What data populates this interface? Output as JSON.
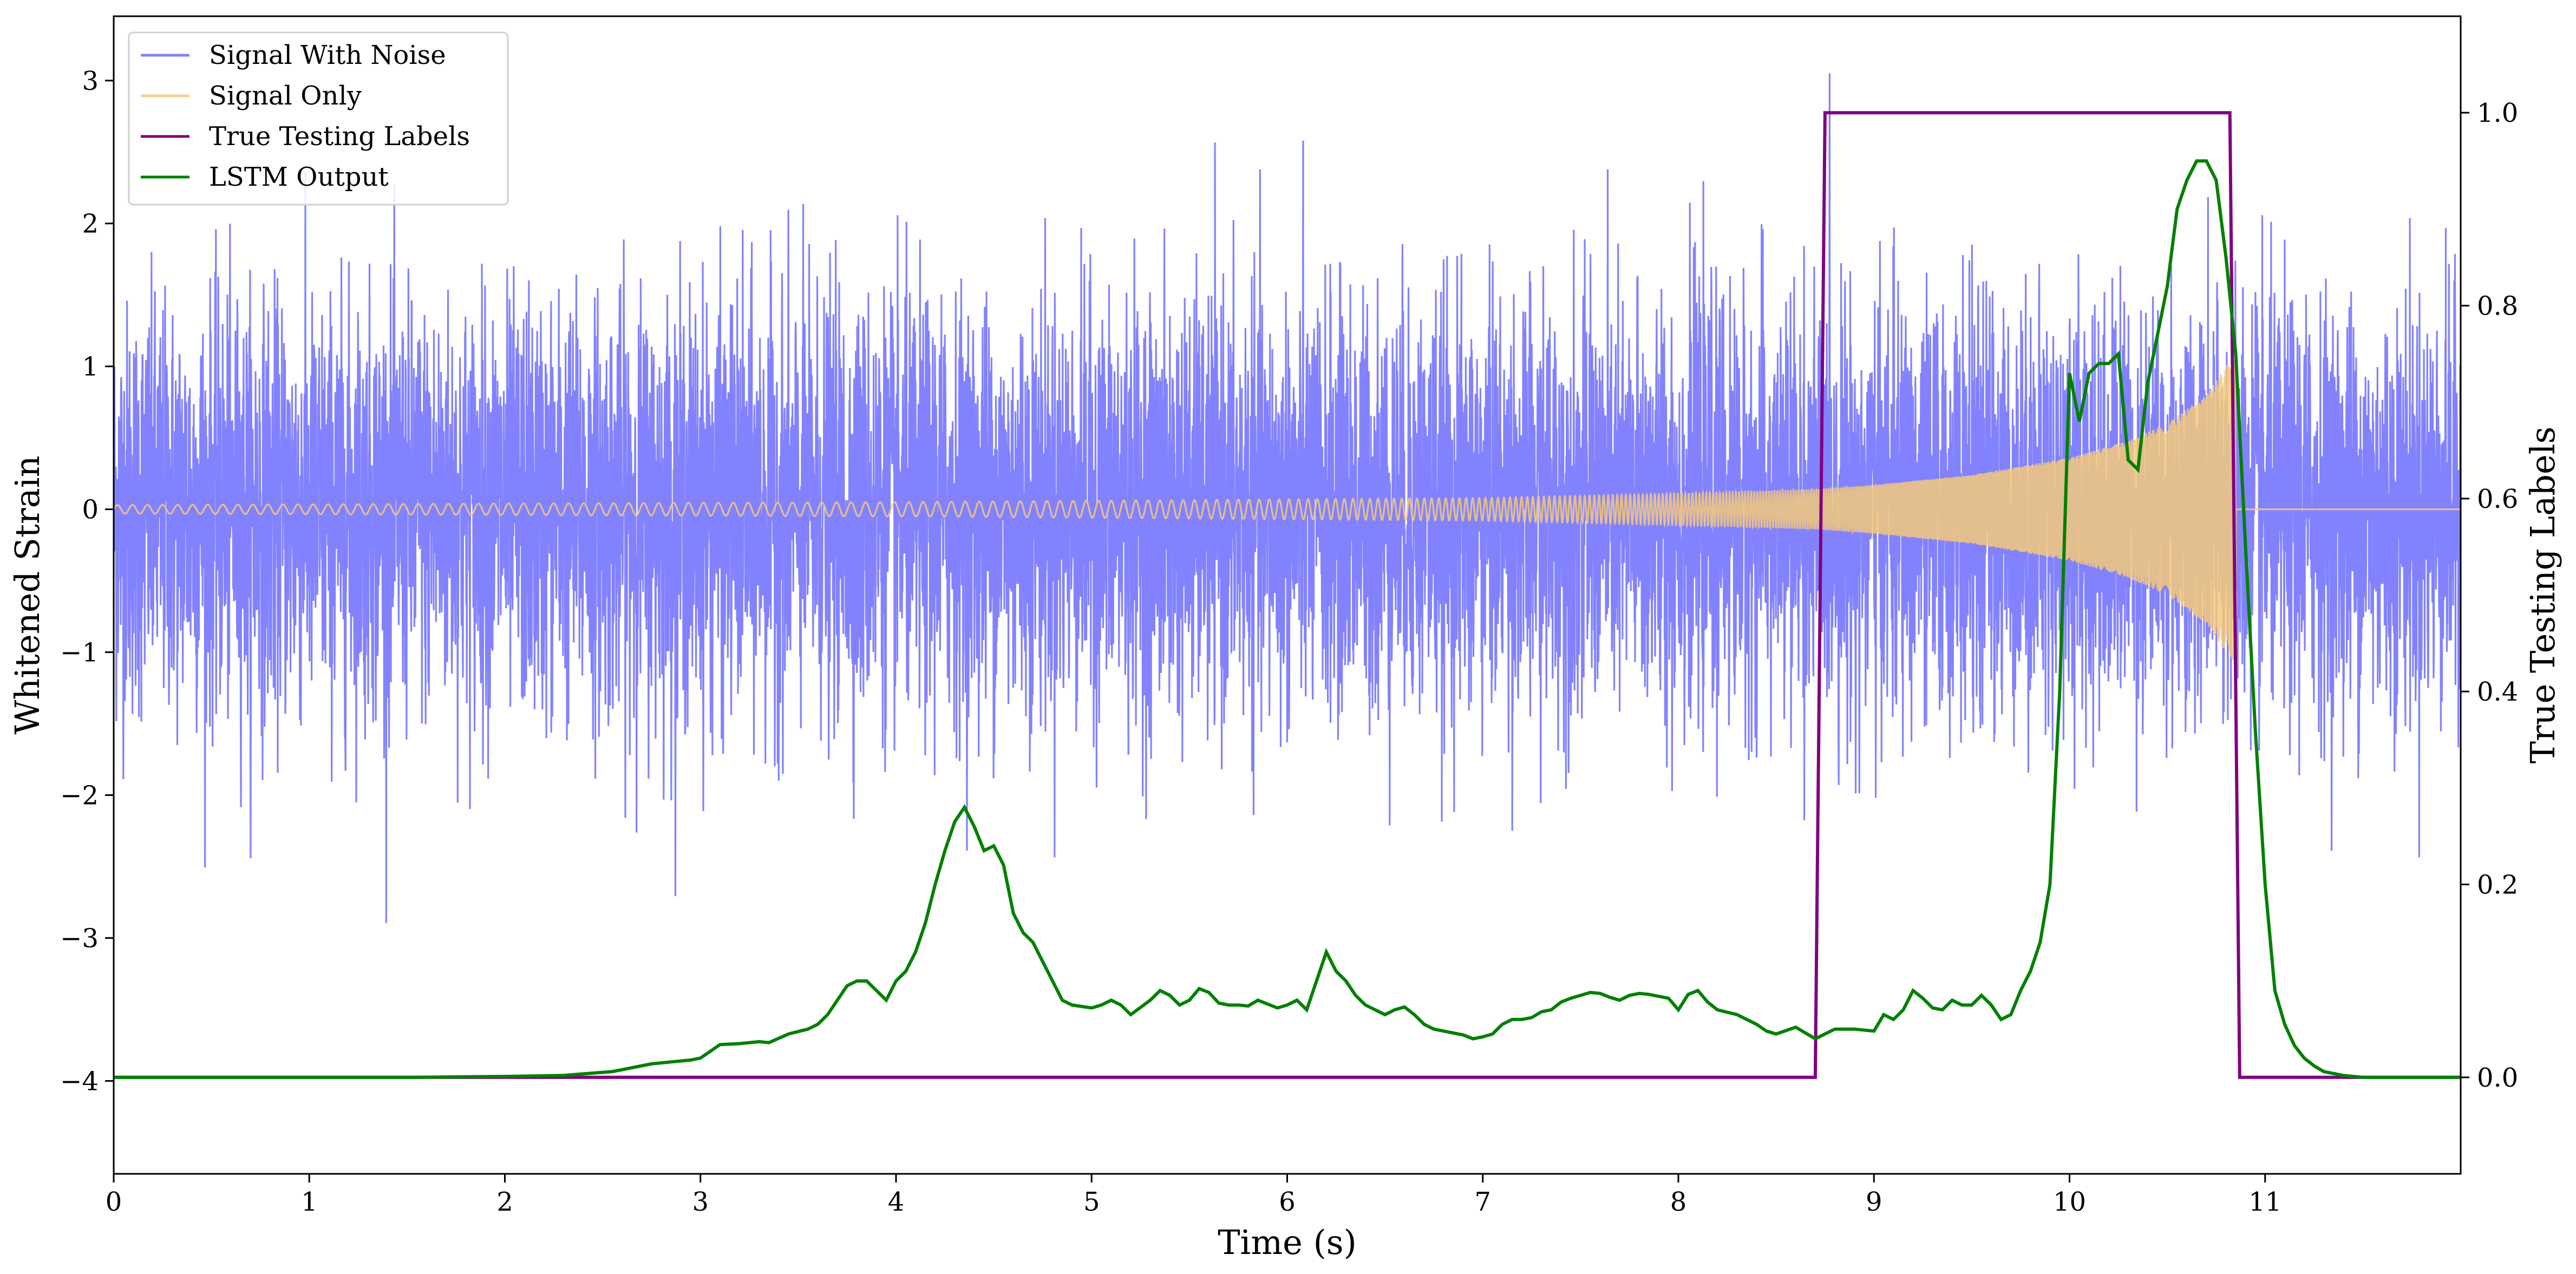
{
  "chart_data": {
    "type": "line",
    "title": "",
    "xlabel": "Time (s)",
    "ylabel_left": "Whitened Strain",
    "ylabel_right": "True Testing Labels",
    "xlim": [
      0,
      12
    ],
    "ylim_left": [
      -4.65,
      3.45
    ],
    "ylim_right": [
      -0.1,
      1.1
    ],
    "x_ticks": [
      0,
      1,
      2,
      3,
      4,
      5,
      6,
      7,
      8,
      9,
      10,
      11
    ],
    "y_ticks_left": [
      3,
      2,
      1,
      0,
      -1,
      -2,
      -3,
      -4
    ],
    "y_ticks_right": [
      1.0,
      0.8,
      0.6,
      0.4,
      0.2,
      0.0
    ],
    "y_ticks_left_labels": [
      "3",
      "2",
      "1",
      "0",
      "−1",
      "−2",
      "−3",
      "−4"
    ],
    "y_ticks_right_labels": [
      "1.0",
      "0.8",
      "0.6",
      "0.4",
      "0.2",
      "0.0"
    ],
    "grid": false,
    "legend_position": "top-left",
    "series": [
      {
        "name": "Signal With Noise",
        "axis": "left",
        "color": "#7b7bff",
        "description_values": "dense random noise, roughly within ±2 with spikes to about ±3",
        "envelope": [
          [
            0,
            1.6
          ],
          [
            12,
            1.6
          ]
        ]
      },
      {
        "name": "Signal Only",
        "axis": "left",
        "color": "#f5c97a",
        "description_values": "chirp oscillation with growing amplitude, ending near 10.85 s",
        "envelope": [
          [
            0,
            0.03
          ],
          [
            2,
            0.04
          ],
          [
            4,
            0.05
          ],
          [
            6,
            0.07
          ],
          [
            7,
            0.08
          ],
          [
            8,
            0.11
          ],
          [
            8.7,
            0.14
          ],
          [
            9.0,
            0.17
          ],
          [
            9.5,
            0.24
          ],
          [
            10.0,
            0.36
          ],
          [
            10.3,
            0.48
          ],
          [
            10.5,
            0.6
          ],
          [
            10.7,
            0.8
          ],
          [
            10.8,
            1.0
          ],
          [
            10.85,
            1.1
          ]
        ],
        "ends_at": 10.85
      },
      {
        "name": "True Testing Labels",
        "axis": "right",
        "color": "#800080",
        "x": [
          0,
          8.7,
          8.75,
          10.82,
          10.87,
          12
        ],
        "y": [
          0,
          0,
          1,
          1,
          0,
          0
        ]
      },
      {
        "name": "LSTM Output",
        "axis": "right",
        "color": "#008000",
        "x": [
          0,
          1.0,
          1.5,
          2.0,
          2.3,
          2.55,
          2.65,
          2.75,
          2.85,
          2.95,
          3.0,
          3.1,
          3.2,
          3.25,
          3.3,
          3.35,
          3.45,
          3.55,
          3.6,
          3.65,
          3.7,
          3.75,
          3.8,
          3.85,
          3.9,
          3.95,
          4.0,
          4.05,
          4.1,
          4.15,
          4.2,
          4.25,
          4.3,
          4.35,
          4.4,
          4.45,
          4.5,
          4.55,
          4.6,
          4.65,
          4.7,
          4.75,
          4.8,
          4.85,
          4.9,
          5.0,
          5.05,
          5.1,
          5.15,
          5.2,
          5.3,
          5.35,
          5.4,
          5.45,
          5.5,
          5.55,
          5.6,
          5.65,
          5.7,
          5.75,
          5.8,
          5.85,
          5.9,
          5.95,
          6.0,
          6.05,
          6.1,
          6.15,
          6.2,
          6.25,
          6.3,
          6.35,
          6.4,
          6.45,
          6.5,
          6.55,
          6.6,
          6.65,
          6.7,
          6.75,
          6.8,
          6.85,
          6.9,
          6.95,
          7.0,
          7.05,
          7.1,
          7.15,
          7.2,
          7.25,
          7.3,
          7.35,
          7.4,
          7.45,
          7.5,
          7.55,
          7.6,
          7.65,
          7.7,
          7.75,
          7.8,
          7.85,
          7.9,
          7.95,
          8.0,
          8.05,
          8.1,
          8.15,
          8.2,
          8.3,
          8.4,
          8.45,
          8.5,
          8.6,
          8.7,
          8.8,
          8.9,
          9.0,
          9.05,
          9.1,
          9.15,
          9.2,
          9.25,
          9.3,
          9.35,
          9.4,
          9.45,
          9.5,
          9.55,
          9.6,
          9.65,
          9.7,
          9.75,
          9.8,
          9.85,
          9.9,
          9.95,
          10.0,
          10.05,
          10.1,
          10.15,
          10.2,
          10.25,
          10.3,
          10.35,
          10.4,
          10.45,
          10.5,
          10.55,
          10.6,
          10.65,
          10.7,
          10.75,
          10.8,
          10.85,
          10.9,
          10.95,
          11.0,
          11.05,
          11.1,
          11.15,
          11.2,
          11.25,
          11.3,
          11.4,
          11.5,
          11.6,
          11.7,
          11.8,
          11.9
        ],
        "y": [
          0.0,
          0.0,
          0.0,
          0.001,
          0.002,
          0.006,
          0.01,
          0.014,
          0.016,
          0.018,
          0.02,
          0.034,
          0.035,
          0.036,
          0.037,
          0.036,
          0.045,
          0.05,
          0.055,
          0.065,
          0.08,
          0.095,
          0.1,
          0.1,
          0.09,
          0.08,
          0.1,
          0.11,
          0.13,
          0.16,
          0.2,
          0.235,
          0.265,
          0.28,
          0.26,
          0.235,
          0.24,
          0.22,
          0.17,
          0.15,
          0.14,
          0.12,
          0.1,
          0.08,
          0.075,
          0.072,
          0.075,
          0.08,
          0.075,
          0.065,
          0.08,
          0.09,
          0.085,
          0.075,
          0.08,
          0.092,
          0.088,
          0.077,
          0.075,
          0.075,
          0.074,
          0.08,
          0.076,
          0.072,
          0.075,
          0.08,
          0.07,
          0.1,
          0.13,
          0.11,
          0.1,
          0.085,
          0.075,
          0.07,
          0.065,
          0.07,
          0.073,
          0.065,
          0.055,
          0.05,
          0.048,
          0.046,
          0.044,
          0.04,
          0.042,
          0.045,
          0.055,
          0.06,
          0.06,
          0.062,
          0.068,
          0.07,
          0.078,
          0.082,
          0.085,
          0.088,
          0.087,
          0.083,
          0.08,
          0.085,
          0.087,
          0.086,
          0.084,
          0.082,
          0.07,
          0.086,
          0.09,
          0.078,
          0.07,
          0.065,
          0.055,
          0.048,
          0.045,
          0.052,
          0.04,
          0.05,
          0.05,
          0.048,
          0.065,
          0.06,
          0.07,
          0.09,
          0.082,
          0.072,
          0.07,
          0.08,
          0.075,
          0.075,
          0.085,
          0.075,
          0.06,
          0.065,
          0.09,
          0.11,
          0.14,
          0.2,
          0.4,
          0.73,
          0.68,
          0.73,
          0.74,
          0.74,
          0.75,
          0.64,
          0.63,
          0.72,
          0.77,
          0.82,
          0.9,
          0.93,
          0.95,
          0.95,
          0.93,
          0.85,
          0.75,
          0.55,
          0.36,
          0.2,
          0.09,
          0.055,
          0.033,
          0.02,
          0.012,
          0.006,
          0.002,
          0.0,
          0.0,
          0.0,
          0.0,
          0.0
        ]
      }
    ]
  }
}
